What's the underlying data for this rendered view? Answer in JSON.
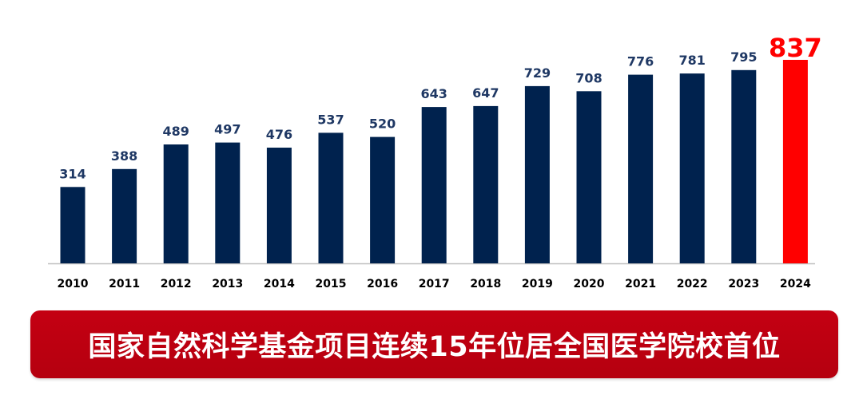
{
  "chart_data": {
    "type": "bar",
    "title": "",
    "xlabel": "",
    "ylabel": "",
    "categories": [
      "2010",
      "2011",
      "2012",
      "2013",
      "2014",
      "2015",
      "2016",
      "2017",
      "2018",
      "2019",
      "2020",
      "2021",
      "2022",
      "2023",
      "2024"
    ],
    "values": [
      314,
      388,
      489,
      497,
      476,
      537,
      520,
      643,
      647,
      729,
      708,
      776,
      781,
      795,
      837
    ],
    "ylim": [
      0,
      837
    ],
    "grid": false,
    "legend": "none",
    "colors": {
      "bar": "#00224e",
      "highlight_bar": "#ff0000",
      "label": "#1f3864",
      "highlight_label": "#ff0000",
      "baseline": "#bfbfbf"
    },
    "highlight_index": 14
  },
  "banner": {
    "text": "国家自然科学基金项目连续15年位居全国医学院校首位",
    "color": "#c00000"
  }
}
